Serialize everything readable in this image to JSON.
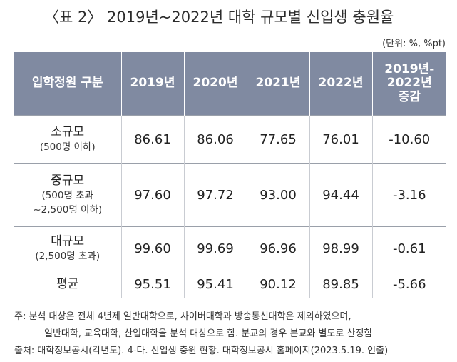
{
  "title": "〈표 2〉 2019년~2022년 대학 규모별 신입생 충원율",
  "unit": "(단위: %, %pt)",
  "table": {
    "headers": [
      "입학정원 구분",
      "2019년",
      "2020년",
      "2021년",
      "2022년",
      "2019년-\n2022년\n증감"
    ],
    "rows": [
      {
        "main": "소규모",
        "sub": "(500명 이하)",
        "values": [
          "86.61",
          "86.06",
          "77.65",
          "76.01",
          "-10.60"
        ]
      },
      {
        "main": "중규모",
        "sub": "(500명 초과\n~2,500명 이하)",
        "values": [
          "97.60",
          "97.72",
          "93.00",
          "94.44",
          "-3.16"
        ]
      },
      {
        "main": "대규모",
        "sub": "(2,500명 초과)",
        "values": [
          "99.60",
          "99.69",
          "96.96",
          "98.99",
          "-0.61"
        ]
      },
      {
        "main": "평균",
        "sub": "",
        "values": [
          "95.51",
          "95.41",
          "90.12",
          "89.85",
          "-5.66"
        ]
      }
    ]
  },
  "notes": {
    "line1": "주: 분석 대상은 전체 4년제 일반대학으로, 사이버대학과 방송통신대학은 제외하였으며,",
    "line2": "일반대학, 교육대학, 산업대학을 분석 대상으로 함. 분교의 경우 본교와 별도로 산정함",
    "line3": "출처: 대학정보공시(각년도). 4-다. 신입생 충원 현황. 대학정보공시 홈페이지(2023.5.19. 인출)"
  }
}
